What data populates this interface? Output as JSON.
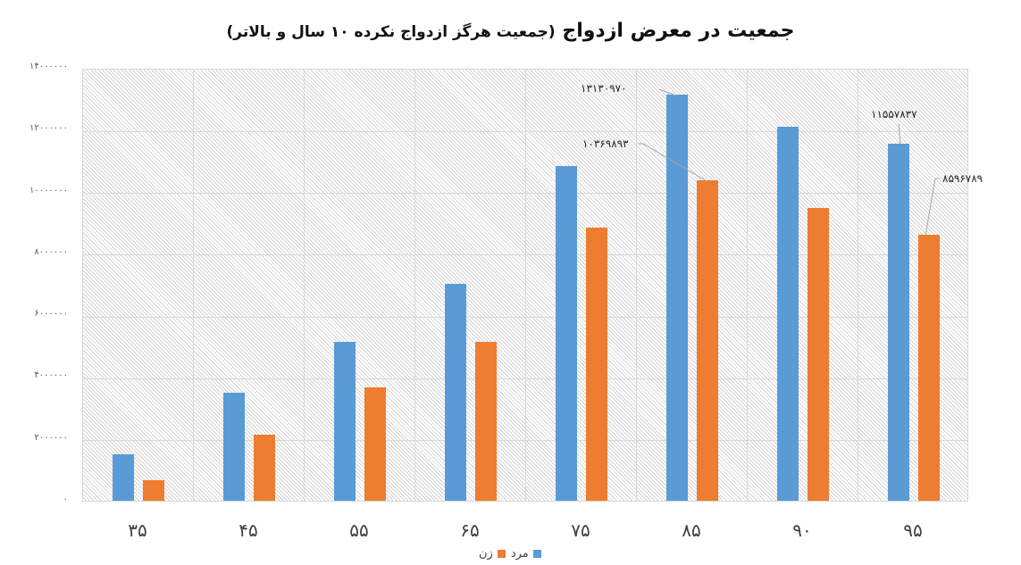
{
  "chart_data": {
    "type": "bar",
    "title": "جمعیت در معرض ازدواج",
    "subtitle": "(جمعیت هرگز ازدواج نکرده ۱۰ سال و بالاتر)",
    "xlabel": "",
    "ylabel": "",
    "categories": [
      "۳۵",
      "۴۵",
      "۵۵",
      "۶۵",
      "۷۵",
      "۸۵",
      "۹۰",
      "۹۵"
    ],
    "series": [
      {
        "name": "مرد",
        "color": "#5B9BD5",
        "values": [
          1500000,
          3490000,
          5140000,
          7010000,
          10830000,
          13130970,
          12100000,
          11557837
        ]
      },
      {
        "name": "زن",
        "color": "#ED7D31",
        "values": [
          660000,
          2140000,
          3670000,
          5140000,
          8830000,
          10369893,
          9470000,
          8596789
        ]
      }
    ],
    "ylim": [
      0,
      14000000
    ],
    "yticks": [
      "۰",
      "۲۰۰۰۰۰۰",
      "۴۰۰۰۰۰۰",
      "۶۰۰۰۰۰۰",
      "۸۰۰۰۰۰۰",
      "۱۰۰۰۰۰۰۰",
      "۱۲۰۰۰۰۰۰",
      "۱۴۰۰۰۰۰۰"
    ],
    "grid": true,
    "legend_position": "bottom",
    "annotations": [
      {
        "category": "۸۵",
        "series": "مرد",
        "text": "۱۳۱۳۰۹۷۰"
      },
      {
        "category": "۸۵",
        "series": "زن",
        "text": "۱۰۳۶۹۸۹۳"
      },
      {
        "category": "۹۵",
        "series": "مرد",
        "text": "۱۱۵۵۷۸۳۷"
      },
      {
        "category": "۹۵",
        "series": "زن",
        "text": "۸۵۹۶۷۸۹"
      }
    ]
  },
  "legend": {
    "male": "مرد",
    "female": "زن"
  }
}
